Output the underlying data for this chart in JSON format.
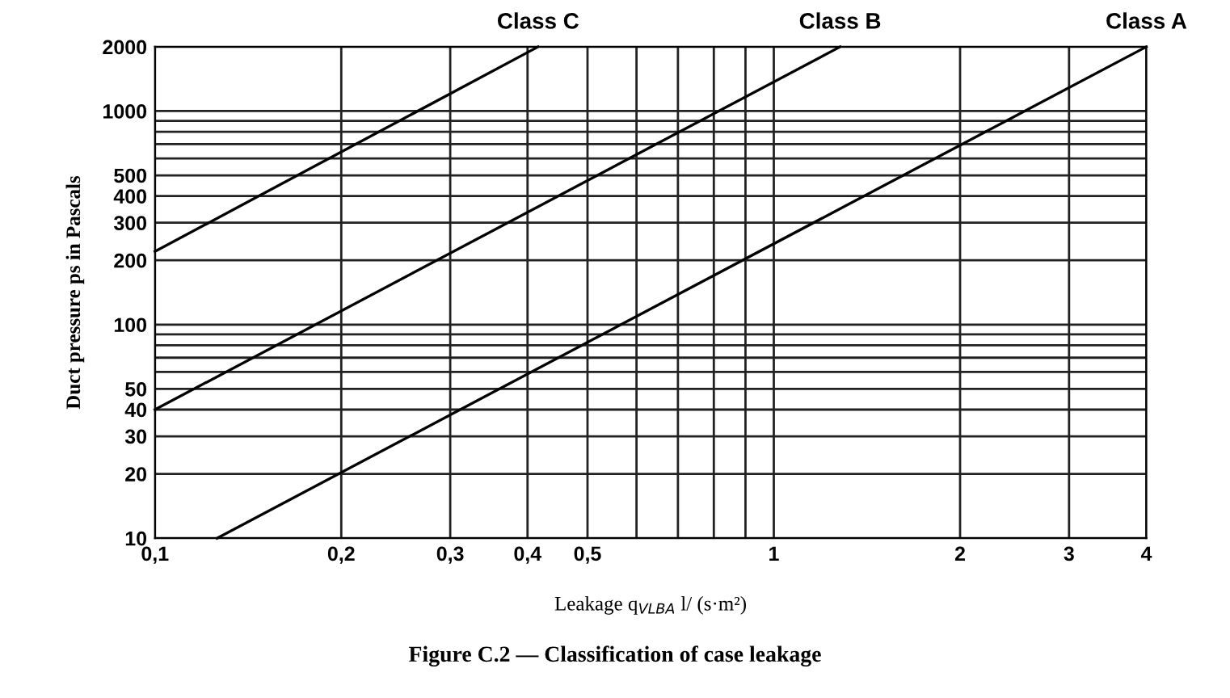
{
  "chart_data": {
    "type": "line",
    "title": "Figure C.2 — Classification of case leakage",
    "xlabel": "Leakage q$_{VLBA}$ l/ (s·m²)",
    "ylabel": "Duct pressure ps in Pascals",
    "log": "xy",
    "grid": true,
    "legend": false,
    "marker": "none",
    "line_style": "solid",
    "xlim": [
      0.1,
      4
    ],
    "ylim": [
      10,
      2000
    ],
    "xticks": [
      {
        "value": 0.1,
        "label": "0,1"
      },
      {
        "value": 0.2,
        "label": "0,2"
      },
      {
        "value": 0.3,
        "label": "0,3"
      },
      {
        "value": 0.4,
        "label": "0,4"
      },
      {
        "value": 0.5,
        "label": "0,5"
      },
      {
        "value": 0.6,
        "label": null
      },
      {
        "value": 0.7,
        "label": null
      },
      {
        "value": 0.8,
        "label": null
      },
      {
        "value": 0.9,
        "label": null
      },
      1,
      2,
      3,
      4
    ],
    "yticks": [
      10,
      20,
      30,
      40,
      50,
      {
        "value": 60,
        "label": null
      },
      {
        "value": 70,
        "label": null
      },
      {
        "value": 80,
        "label": null
      },
      {
        "value": 90,
        "label": null
      },
      100,
      200,
      300,
      400,
      500,
      {
        "value": 600,
        "label": null
      },
      {
        "value": 700,
        "label": null
      },
      {
        "value": 800,
        "label": null
      },
      {
        "value": 900,
        "label": null
      },
      1000,
      2000
    ],
    "series": [
      {
        "name": "Class C",
        "color": "#000000",
        "x": [
          0.1,
          0.416
        ],
        "values": [
          220,
          2000
        ]
      },
      {
        "name": "Class B",
        "color": "#000000",
        "x": [
          0.1,
          1.28
        ],
        "values": [
          40,
          2000
        ]
      },
      {
        "name": "Class A",
        "color": "#000000",
        "x": [
          0.126,
          4
        ],
        "values": [
          10,
          2000
        ]
      }
    ]
  }
}
